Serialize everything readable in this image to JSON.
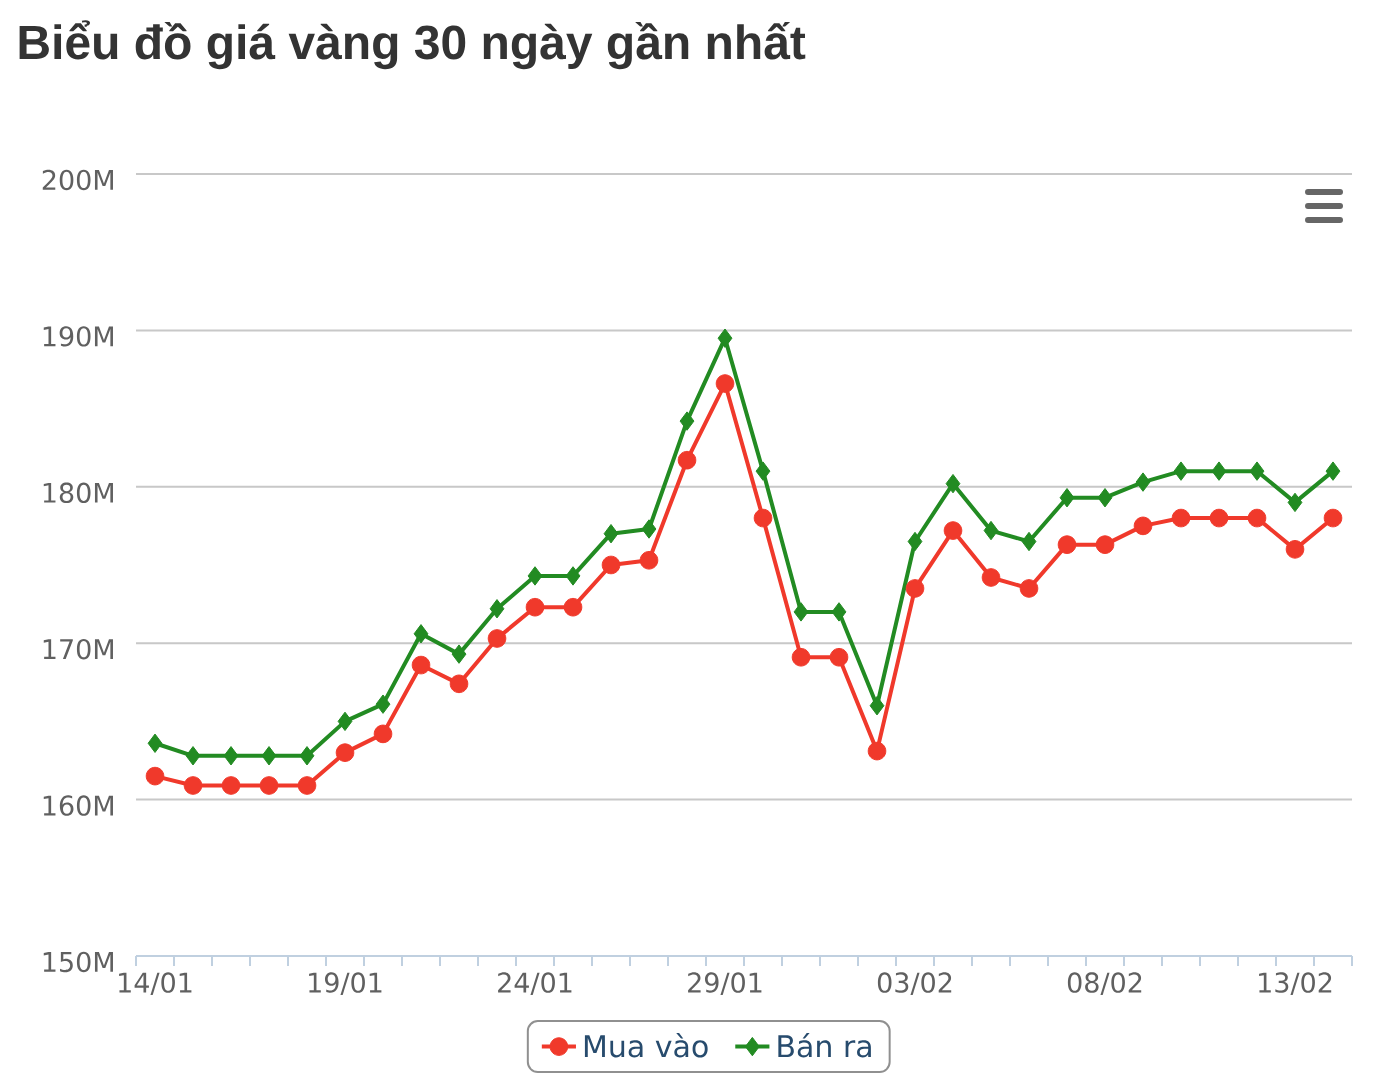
{
  "chart_data": {
    "type": "line",
    "title": "Biểu đồ giá vàng 30 ngày gần nhất",
    "categories": [
      "14/01",
      null,
      null,
      null,
      null,
      "19/01",
      null,
      null,
      null,
      null,
      "24/01",
      null,
      null,
      null,
      null,
      "29/01",
      null,
      null,
      null,
      null,
      "03/02",
      null,
      null,
      null,
      null,
      "08/02",
      null,
      null,
      null,
      null,
      "13/02",
      null
    ],
    "series": [
      {
        "name": "Mua vào",
        "color": "#f0392b",
        "marker": "circle",
        "values": [
          161.5,
          160.9,
          160.9,
          160.9,
          160.9,
          163.0,
          164.2,
          168.6,
          167.4,
          170.3,
          172.3,
          172.3,
          175.0,
          175.3,
          181.7,
          186.6,
          178.0,
          169.1,
          169.1,
          163.1,
          173.5,
          177.2,
          174.2,
          173.5,
          176.3,
          176.3,
          177.5,
          178.0,
          178.0,
          178.0,
          176.0,
          178.0
        ]
      },
      {
        "name": "Bán ra",
        "color": "#228b22",
        "marker": "diamond",
        "values": [
          163.6,
          162.8,
          162.8,
          162.8,
          162.8,
          165.0,
          166.1,
          170.6,
          169.3,
          172.2,
          174.3,
          174.3,
          177.0,
          177.3,
          184.2,
          189.5,
          181.0,
          172.0,
          172.0,
          166.0,
          176.5,
          180.2,
          177.2,
          176.5,
          179.3,
          179.3,
          180.3,
          181.0,
          181.0,
          181.0,
          179.0,
          181.0
        ]
      }
    ],
    "ylim": [
      150,
      200
    ],
    "yticks": [
      {
        "value": 150,
        "label": "150M"
      },
      {
        "value": 160,
        "label": "160M"
      },
      {
        "value": 170,
        "label": "170M"
      },
      {
        "value": 180,
        "label": "180M"
      },
      {
        "value": 190,
        "label": "190M"
      },
      {
        "value": 200,
        "label": "200M"
      }
    ],
    "grid": "y",
    "legend": "bottom"
  }
}
